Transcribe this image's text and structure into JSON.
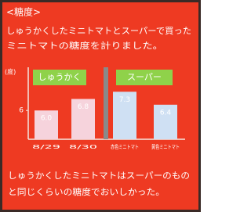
{
  "chart_data": {
    "type": "bar",
    "title": "<糖度>",
    "description": [
      "しゅうかくしたミニトマトとスーパーで買った",
      "ミニトマトの糖度を計りました。"
    ],
    "y_label": "(度)",
    "groups": [
      "しゅうかく",
      "スーパー"
    ],
    "categories": [
      "8/29",
      "8/30",
      "赤色ミニトマト",
      "黄色ミニトマト"
    ],
    "values": [
      6.0,
      6.8,
      7.3,
      6.4
    ],
    "value_labels": [
      "6.0",
      "6.8",
      "7.3",
      "6.4"
    ],
    "colors": [
      "#f6d3dc",
      "#f6d3dc",
      "#cfe0f3",
      "#cfe0f3"
    ],
    "ylim": [
      4,
      9
    ],
    "yticks": [
      6
    ],
    "conclusion": [
      "しゅうかくしたミニトマトはスーパーのもの",
      "と同じくらいの糖度でおいしかった。"
    ]
  }
}
